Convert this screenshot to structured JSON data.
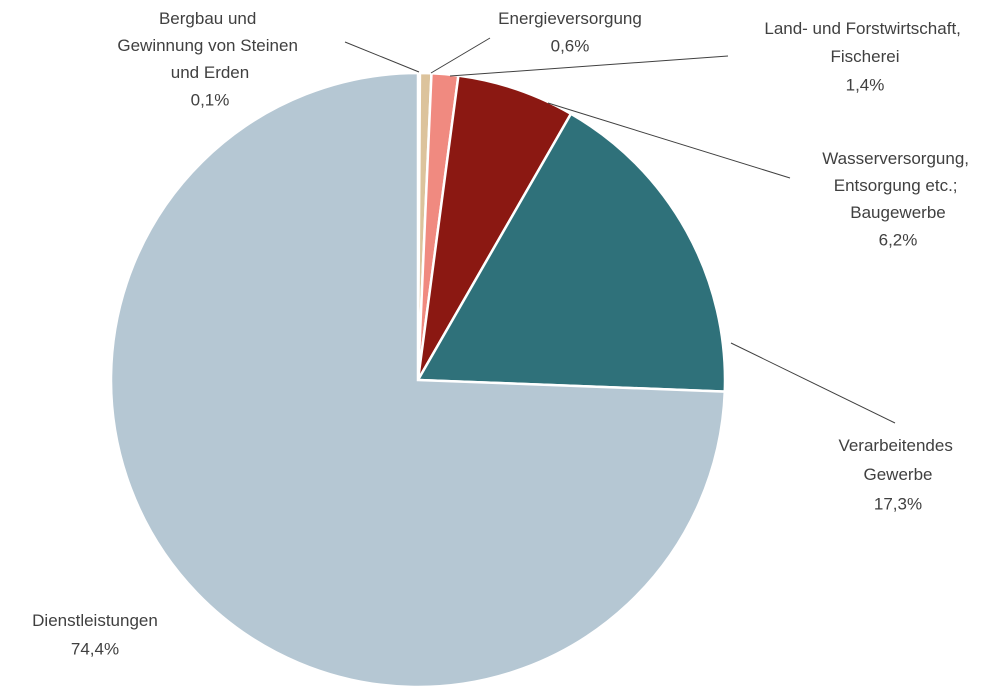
{
  "chart_data": {
    "type": "pie",
    "categories": [
      "Bergbau und Gewinnung von Steinen und Erden",
      "Energieversorgung",
      "Land- und Forstwirtschaft, Fischerei",
      "Wasserversorgung, Entsorgung etc.; Baugewerbe",
      "Verarbeitendes Gewerbe",
      "Dienstleistungen"
    ],
    "values": [
      0.1,
      0.6,
      1.4,
      6.2,
      17.3,
      74.4
    ],
    "value_labels": [
      "0,1%",
      "0,6%",
      "1,4%",
      "6,2%",
      "17,3%",
      "74,4%"
    ],
    "colors": [
      "#1f3864",
      "#dcc39c",
      "#f08a80",
      "#8b1812",
      "#2f717a",
      "#b5c7d3"
    ]
  }
}
